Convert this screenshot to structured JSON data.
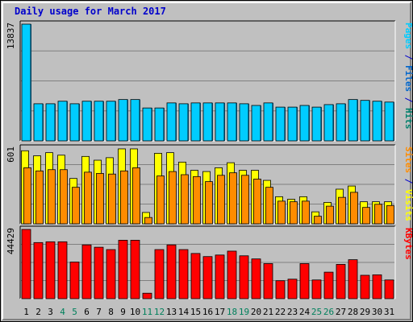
{
  "chart_data": {
    "type": "bar",
    "title": "Daily usage for March 2017",
    "categories": [
      "1",
      "2",
      "3",
      "4",
      "5",
      "6",
      "7",
      "8",
      "9",
      "10",
      "11",
      "12",
      "13",
      "14",
      "15",
      "16",
      "17",
      "18",
      "19",
      "20",
      "21",
      "22",
      "23",
      "24",
      "25",
      "26",
      "27",
      "28",
      "29",
      "30",
      "31"
    ],
    "weekend_days": [
      "4",
      "5",
      "11",
      "12",
      "18",
      "19",
      "25",
      "26"
    ],
    "colors": {
      "background": "#c0c0c0",
      "title": "#0000cc",
      "day_label": "#000000",
      "weekend_label": "#00805c",
      "pages": "#00ccff",
      "pages_shadow": "#006699",
      "files": "#0066cc",
      "hits": "#00806c",
      "visits": "#ffff00",
      "sites": "#ff8c00",
      "kbytes": "#ff0000",
      "gridline": "#808080"
    },
    "panels": [
      {
        "id": "hits-files-pages",
        "max_label": "13837",
        "ylim": [
          0,
          13837
        ],
        "side_label": [
          {
            "text": "Pages",
            "color": "#00ccff"
          },
          {
            "text": " / ",
            "color": "#0000cc"
          },
          {
            "text": "Files",
            "color": "#0066cc"
          },
          {
            "text": " / ",
            "color": "#0000cc"
          },
          {
            "text": "Hits",
            "color": "#00806c"
          }
        ],
        "series": [
          {
            "name": "Hits",
            "color": "#00ccff",
            "values": [
              13837,
              4400,
              4400,
              4700,
              4400,
              4700,
              4700,
              4700,
              4900,
              4900,
              3900,
              3900,
              4500,
              4400,
              4500,
              4500,
              4500,
              4500,
              4400,
              4200,
              4500,
              4000,
              4000,
              4200,
              4000,
              4300,
              4400,
              4900,
              4800,
              4700,
              4600
            ]
          },
          {
            "name": "Files",
            "color": "#0066cc",
            "values": [
              13837,
              4400,
              4400,
              4700,
              4400,
              4700,
              4700,
              4700,
              4900,
              4900,
              3900,
              3900,
              4500,
              4400,
              4500,
              4500,
              4500,
              4500,
              4400,
              4200,
              4500,
              4000,
              4000,
              4200,
              4000,
              4300,
              4400,
              4900,
              4800,
              4700,
              4600
            ]
          },
          {
            "name": "Pages",
            "color": "#00ccff",
            "values": [
              13837,
              4400,
              4400,
              4700,
              4400,
              4700,
              4700,
              4700,
              4900,
              4900,
              3900,
              3900,
              4500,
              4400,
              4500,
              4500,
              4500,
              4500,
              4400,
              4200,
              4500,
              4000,
              4000,
              4200,
              4000,
              4300,
              4400,
              4900,
              4800,
              4700,
              4600
            ]
          }
        ]
      },
      {
        "id": "visits-sites",
        "max_label": "601",
        "ylim": [
          0,
          601
        ],
        "side_label": [
          {
            "text": "Sites",
            "color": "#ff8c00"
          },
          {
            "text": " / ",
            "color": "#0000cc"
          },
          {
            "text": "Visits",
            "color": "#ffff00"
          }
        ],
        "series": [
          {
            "name": "Visits",
            "color": "#ffff00",
            "values": [
              580,
              540,
              565,
              545,
              360,
              535,
              505,
              525,
              595,
              595,
              90,
              560,
              565,
              490,
              425,
              415,
              445,
              485,
              425,
              425,
              345,
              215,
              195,
              215,
              95,
              170,
              275,
              300,
              175,
              175,
              175
            ]
          },
          {
            "name": "Sites",
            "color": "#ff8c00",
            "values": [
              445,
              420,
              430,
              430,
              290,
              410,
              400,
              395,
              420,
              445,
              50,
              380,
              415,
              390,
              375,
              335,
              385,
              405,
              385,
              355,
              290,
              180,
              175,
              180,
              60,
              140,
              210,
              250,
              130,
              155,
              145
            ]
          }
        ]
      },
      {
        "id": "kbytes",
        "max_label": "44429",
        "ylim": [
          0,
          44429
        ],
        "side_label": [
          {
            "text": "KBytes",
            "color": "#ff0000"
          }
        ],
        "series": [
          {
            "name": "KBytes",
            "color": "#ff0000",
            "values": [
              44429,
              36000,
              36500,
              36500,
              23500,
              34500,
              33000,
              31500,
              37500,
              37500,
              3500,
              31500,
              34500,
              31500,
              29000,
              27000,
              28000,
              30500,
              27500,
              25500,
              22500,
              11500,
              12500,
              22500,
              12000,
              17000,
              22000,
              25000,
              15000,
              15300,
              12000
            ]
          }
        ]
      }
    ]
  }
}
